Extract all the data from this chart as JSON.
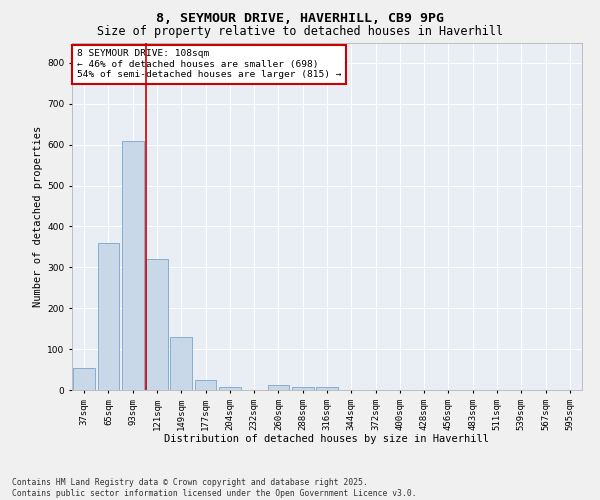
{
  "title1": "8, SEYMOUR DRIVE, HAVERHILL, CB9 9PG",
  "title2": "Size of property relative to detached houses in Haverhill",
  "xlabel": "Distribution of detached houses by size in Haverhill",
  "ylabel": "Number of detached properties",
  "categories": [
    "37sqm",
    "65sqm",
    "93sqm",
    "121sqm",
    "149sqm",
    "177sqm",
    "204sqm",
    "232sqm",
    "260sqm",
    "288sqm",
    "316sqm",
    "344sqm",
    "372sqm",
    "400sqm",
    "428sqm",
    "456sqm",
    "483sqm",
    "511sqm",
    "539sqm",
    "567sqm",
    "595sqm"
  ],
  "values": [
    55,
    360,
    610,
    320,
    130,
    25,
    8,
    0,
    12,
    8,
    8,
    0,
    0,
    0,
    0,
    0,
    0,
    0,
    0,
    0,
    0
  ],
  "bar_color": "#c8d8e8",
  "bar_edge_color": "#7aa4c8",
  "annotation_text": "8 SEYMOUR DRIVE: 108sqm\n← 46% of detached houses are smaller (698)\n54% of semi-detached houses are larger (815) →",
  "annotation_box_color": "#ffffff",
  "annotation_box_edge_color": "#cc0000",
  "ylim": [
    0,
    850
  ],
  "yticks": [
    0,
    100,
    200,
    300,
    400,
    500,
    600,
    700,
    800
  ],
  "background_color": "#e8eef4",
  "grid_color": "#ffffff",
  "footer_text": "Contains HM Land Registry data © Crown copyright and database right 2025.\nContains public sector information licensed under the Open Government Licence v3.0.",
  "title1_fontsize": 9.5,
  "title2_fontsize": 8.5,
  "xlabel_fontsize": 7.5,
  "ylabel_fontsize": 7.5,
  "tick_fontsize": 6.5,
  "annotation_fontsize": 6.8,
  "footer_fontsize": 5.8
}
